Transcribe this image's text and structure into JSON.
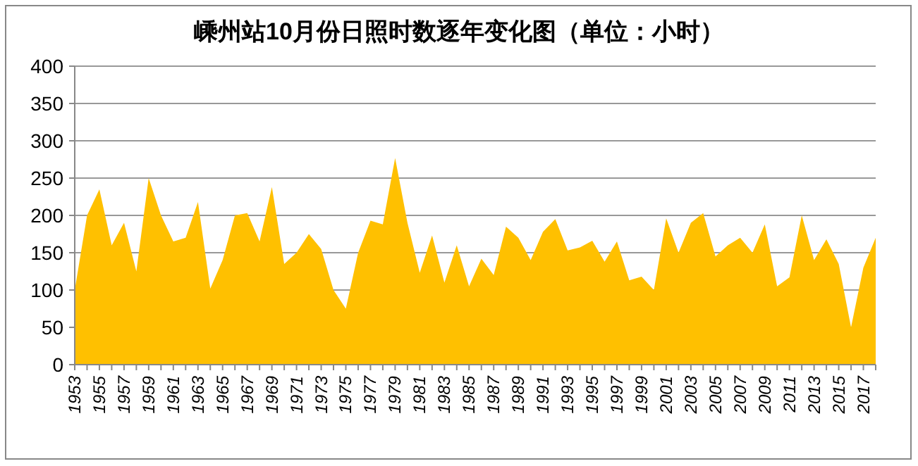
{
  "chart_data": {
    "type": "area",
    "title": "嵊州站10月份日照时数逐年变化图（单位：小时）",
    "categories": [
      "1953",
      null,
      "1955",
      null,
      "1957",
      null,
      "1959",
      null,
      "1961",
      null,
      "1963",
      null,
      "1965",
      null,
      "1967",
      null,
      "1969",
      null,
      "1971",
      null,
      "1973",
      null,
      "1975",
      null,
      "1977",
      null,
      "1979",
      null,
      "1981",
      null,
      "1983",
      null,
      "1985",
      null,
      "1987",
      null,
      "1989",
      null,
      "1991",
      null,
      "1993",
      null,
      "1995",
      null,
      "1997",
      null,
      "1999",
      null,
      "2001",
      null,
      "2003",
      null,
      "2005",
      null,
      "2007",
      null,
      "2009",
      null,
      "2011",
      null,
      "2013",
      null,
      "2015",
      null,
      "2017",
      null
    ],
    "values": [
      100,
      200,
      235,
      160,
      190,
      125,
      250,
      200,
      165,
      170,
      218,
      102,
      140,
      200,
      203,
      165,
      238,
      135,
      150,
      175,
      155,
      100,
      75,
      150,
      193,
      188,
      277,
      190,
      123,
      173,
      110,
      160,
      105,
      142,
      120,
      185,
      170,
      140,
      178,
      195,
      153,
      157,
      166,
      138,
      165,
      113,
      118,
      100,
      196,
      150,
      190,
      203,
      145,
      160,
      170,
      150,
      188,
      105,
      117,
      200,
      140,
      168,
      135,
      50,
      130,
      170
    ],
    "color": "#ffc000",
    "ylim": [
      0,
      400
    ],
    "yticks": [
      0,
      50,
      100,
      150,
      200,
      250,
      300,
      350,
      400
    ],
    "grid": "y"
  }
}
